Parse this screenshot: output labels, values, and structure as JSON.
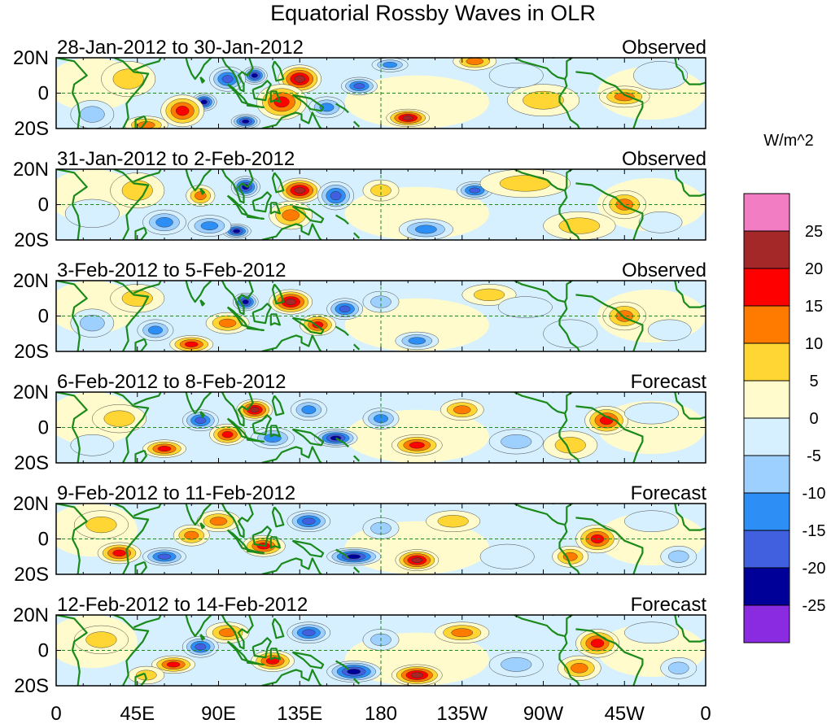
{
  "title": "Equatorial Rossby Waves in OLR",
  "colorbar": {
    "unit": "W/m^2",
    "labels": [
      "25",
      "20",
      "15",
      "10",
      "5",
      "0",
      "-5",
      "-10",
      "-15",
      "-20",
      "-25"
    ],
    "colors": [
      "#f27dc2",
      "#a52828",
      "#ff0000",
      "#ff7b00",
      "#ffd633",
      "#fffbcc",
      "#d6f0ff",
      "#9ed0ff",
      "#2d8ff5",
      "#4060e0",
      "#000099",
      "#8a2be2"
    ]
  },
  "y_ticks": [
    "20N",
    "0",
    "20S"
  ],
  "x_ticks": [
    "0",
    "45E",
    "90E",
    "135E",
    "180",
    "135W",
    "90W",
    "45W",
    "0"
  ],
  "panels": [
    {
      "date_range": "28-Jan-2012 to 30-Jan-2012",
      "status": "Observed"
    },
    {
      "date_range": "31-Jan-2012 to 2-Feb-2012",
      "status": "Observed"
    },
    {
      "date_range": "3-Feb-2012 to 5-Feb-2012",
      "status": "Observed"
    },
    {
      "date_range": "6-Feb-2012 to 8-Feb-2012",
      "status": "Forecast"
    },
    {
      "date_range": "9-Feb-2012 to 11-Feb-2012",
      "status": "Forecast"
    },
    {
      "date_range": "12-Feb-2012 to 14-Feb-2012",
      "status": "Forecast"
    }
  ],
  "anomalies": [
    [
      [
        135,
        8,
        12,
        8,
        25
      ],
      [
        110,
        10,
        7,
        5,
        -25
      ],
      [
        82,
        -5,
        7,
        5,
        -25
      ],
      [
        105,
        -16,
        8,
        4,
        -25
      ],
      [
        125,
        -5,
        14,
        10,
        20
      ],
      [
        195,
        -14,
        12,
        5,
        25
      ],
      [
        168,
        4,
        10,
        5,
        -20
      ],
      [
        185,
        16,
        10,
        4,
        -15
      ],
      [
        232,
        18,
        12,
        5,
        15
      ],
      [
        315,
        -2,
        14,
        6,
        15
      ],
      [
        270,
        -4,
        20,
        9,
        10
      ],
      [
        70,
        -10,
        12,
        9,
        20
      ],
      [
        40,
        8,
        15,
        10,
        10
      ],
      [
        20,
        -12,
        12,
        8,
        -10
      ],
      [
        255,
        10,
        15,
        7,
        -5
      ],
      [
        335,
        10,
        15,
        8,
        -5
      ],
      [
        50,
        -18,
        12,
        5,
        15
      ],
      [
        95,
        8,
        10,
        7,
        -20
      ],
      [
        150,
        -8,
        10,
        6,
        -15
      ]
    ],
    [
      [
        135,
        8,
        12,
        7,
        25
      ],
      [
        105,
        10,
        8,
        6,
        -25
      ],
      [
        100,
        -15,
        8,
        4,
        -25
      ],
      [
        130,
        -6,
        12,
        8,
        15
      ],
      [
        155,
        5,
        10,
        8,
        -20
      ],
      [
        205,
        -14,
        15,
        6,
        -15
      ],
      [
        232,
        8,
        10,
        5,
        -20
      ],
      [
        260,
        12,
        25,
        8,
        10
      ],
      [
        290,
        -12,
        20,
        8,
        10
      ],
      [
        315,
        0,
        12,
        8,
        15
      ],
      [
        45,
        8,
        15,
        10,
        10
      ],
      [
        60,
        -10,
        12,
        7,
        -15
      ],
      [
        20,
        -5,
        15,
        8,
        -5
      ],
      [
        335,
        -10,
        12,
        6,
        -5
      ],
      [
        85,
        -12,
        12,
        6,
        -15
      ],
      [
        180,
        8,
        10,
        6,
        10
      ],
      [
        80,
        5,
        8,
        6,
        15
      ]
    ],
    [
      [
        130,
        8,
        12,
        7,
        25
      ],
      [
        105,
        8,
        7,
        5,
        -25
      ],
      [
        145,
        -5,
        10,
        6,
        20
      ],
      [
        160,
        4,
        10,
        6,
        -20
      ],
      [
        75,
        -16,
        12,
        5,
        20
      ],
      [
        95,
        -4,
        12,
        6,
        15
      ],
      [
        200,
        -14,
        12,
        5,
        -15
      ],
      [
        240,
        12,
        15,
        6,
        10
      ],
      [
        315,
        0,
        12,
        8,
        15
      ],
      [
        285,
        -10,
        15,
        8,
        -5
      ],
      [
        45,
        10,
        15,
        8,
        10
      ],
      [
        55,
        -8,
        10,
        6,
        -15
      ],
      [
        20,
        -4,
        12,
        8,
        -10
      ],
      [
        180,
        8,
        10,
        6,
        -10
      ],
      [
        340,
        -8,
        12,
        6,
        -5
      ],
      [
        260,
        5,
        15,
        6,
        -5
      ]
    ],
    [
      [
        110,
        10,
        10,
        6,
        25
      ],
      [
        95,
        -4,
        10,
        6,
        20
      ],
      [
        80,
        4,
        10,
        6,
        -20
      ],
      [
        120,
        -6,
        12,
        6,
        -15
      ],
      [
        155,
        -6,
        12,
        5,
        -25
      ],
      [
        200,
        -10,
        14,
        6,
        20
      ],
      [
        225,
        10,
        12,
        6,
        15
      ],
      [
        305,
        4,
        12,
        8,
        20
      ],
      [
        285,
        -10,
        15,
        8,
        10
      ],
      [
        330,
        8,
        15,
        6,
        -5
      ],
      [
        60,
        -12,
        12,
        5,
        20
      ],
      [
        35,
        5,
        15,
        8,
        10
      ],
      [
        20,
        -10,
        12,
        6,
        -5
      ],
      [
        180,
        5,
        10,
        6,
        -15
      ],
      [
        255,
        -8,
        15,
        7,
        -10
      ],
      [
        140,
        10,
        10,
        6,
        -15
      ]
    ],
    [
      [
        90,
        10,
        12,
        6,
        15
      ],
      [
        115,
        -4,
        12,
        6,
        20
      ],
      [
        140,
        10,
        12,
        6,
        -20
      ],
      [
        165,
        -10,
        15,
        5,
        -25
      ],
      [
        200,
        -12,
        12,
        6,
        25
      ],
      [
        220,
        10,
        15,
        6,
        10
      ],
      [
        300,
        0,
        12,
        8,
        20
      ],
      [
        285,
        -10,
        10,
        6,
        15
      ],
      [
        60,
        -10,
        12,
        5,
        -20
      ],
      [
        75,
        2,
        10,
        6,
        15
      ],
      [
        35,
        -8,
        12,
        6,
        20
      ],
      [
        25,
        8,
        15,
        8,
        10
      ],
      [
        180,
        6,
        10,
        6,
        -10
      ],
      [
        250,
        -10,
        15,
        7,
        -5
      ],
      [
        330,
        10,
        15,
        6,
        -5
      ],
      [
        345,
        -10,
        10,
        6,
        -10
      ]
    ],
    [
      [
        95,
        10,
        12,
        6,
        15
      ],
      [
        120,
        -6,
        12,
        6,
        20
      ],
      [
        140,
        10,
        12,
        6,
        -20
      ],
      [
        165,
        -12,
        15,
        6,
        -25
      ],
      [
        200,
        -14,
        14,
        6,
        25
      ],
      [
        225,
        10,
        15,
        6,
        15
      ],
      [
        300,
        4,
        12,
        8,
        20
      ],
      [
        290,
        -10,
        12,
        7,
        15
      ],
      [
        65,
        -8,
        12,
        5,
        20
      ],
      [
        50,
        -14,
        10,
        5,
        10
      ],
      [
        80,
        2,
        10,
        6,
        -20
      ],
      [
        25,
        6,
        15,
        8,
        10
      ],
      [
        180,
        6,
        10,
        6,
        -10
      ],
      [
        255,
        -8,
        15,
        7,
        -10
      ],
      [
        330,
        10,
        15,
        6,
        -5
      ],
      [
        345,
        -10,
        10,
        6,
        -10
      ]
    ]
  ]
}
